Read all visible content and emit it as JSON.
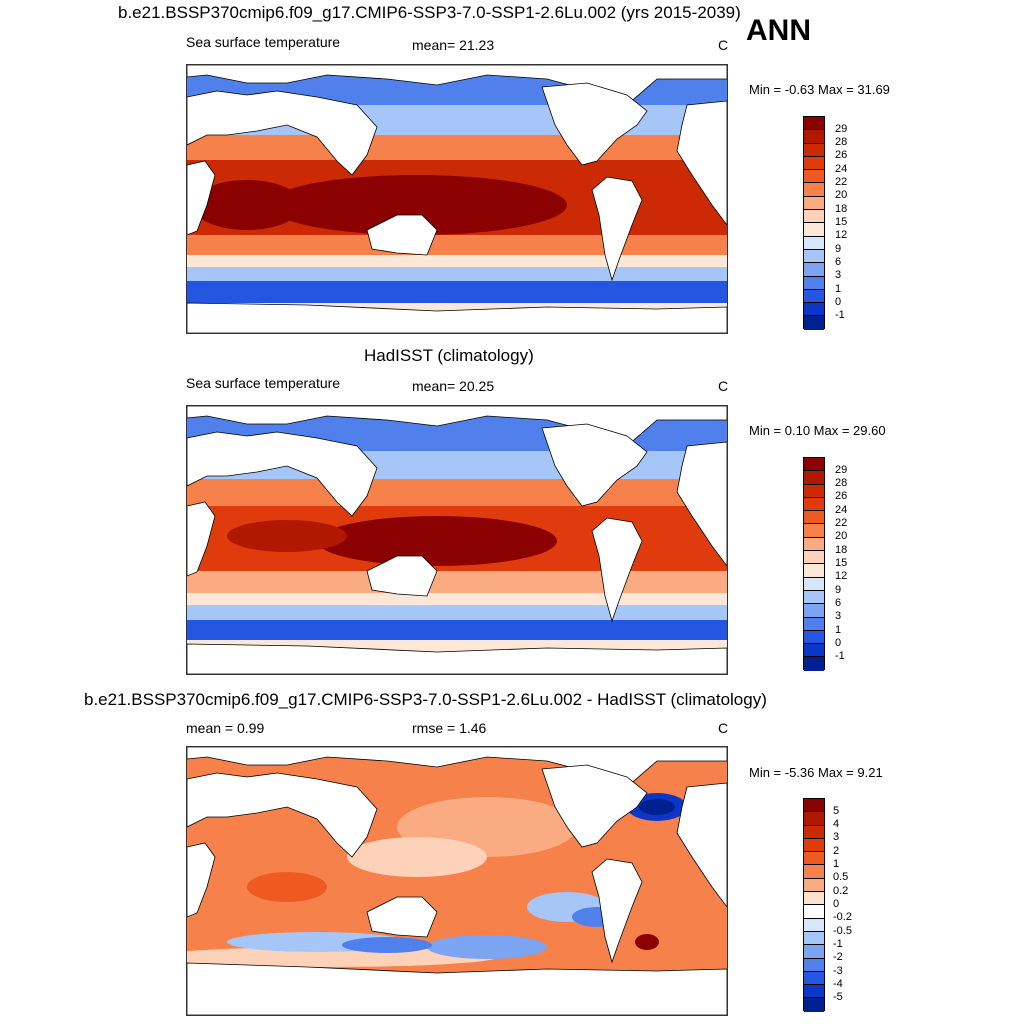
{
  "season": "ANN",
  "panels": [
    {
      "title": "b.e21.BSSP370cmip6.f09_g17.CMIP6-SSP3-7.0-SSP1-2.6Lu.002 (yrs 2015-2039)",
      "left_label": "Sea surface temperature",
      "mid_label": "mean=  21.23",
      "unit": "C",
      "minmax": "Min =  -0.63 Max =  31.69",
      "colorbar_labels": [
        "29",
        "28",
        "26",
        "24",
        "22",
        "20",
        "18",
        "15",
        "12",
        "9",
        "6",
        "3",
        "1",
        "0",
        "-1"
      ],
      "colorbar_colors": [
        "#8b0000",
        "#b01800",
        "#cc2a05",
        "#e03b0d",
        "#ef5a22",
        "#f7814a",
        "#fbab82",
        "#fdd2b8",
        "#fde8d8",
        "#d6e6fb",
        "#a7c6f8",
        "#7ba4f2",
        "#4f80ec",
        "#2456e2",
        "#0b36c8",
        "#002090"
      ]
    },
    {
      "title": "HadISST (climatology)",
      "left_label": "Sea surface temperature",
      "mid_label": "mean=  20.25",
      "unit": "C",
      "minmax": "Min =   0.10 Max =  29.60",
      "colorbar_labels": [
        "29",
        "28",
        "26",
        "24",
        "22",
        "20",
        "18",
        "15",
        "12",
        "9",
        "6",
        "3",
        "1",
        "0",
        "-1"
      ],
      "colorbar_colors": [
        "#8b0000",
        "#b01800",
        "#cc2a05",
        "#e03b0d",
        "#ef5a22",
        "#f7814a",
        "#fbab82",
        "#fdd2b8",
        "#fde8d8",
        "#d6e6fb",
        "#a7c6f8",
        "#7ba4f2",
        "#4f80ec",
        "#2456e2",
        "#0b36c8",
        "#002090"
      ]
    },
    {
      "title": "b.e21.BSSP370cmip6.f09_g17.CMIP6-SSP3-7.0-SSP1-2.6Lu.002 - HadISST (climatology)",
      "left_label": "mean =   0.99",
      "mid_label": "rmse =   1.46",
      "unit": "C",
      "minmax": "Min =  -5.36 Max =   9.21",
      "colorbar_labels": [
        "5",
        "4",
        "3",
        "2",
        "1",
        "0.5",
        "0.2",
        "0",
        "-0.2",
        "-0.5",
        "-1",
        "-2",
        "-3",
        "-4",
        "-5"
      ],
      "colorbar_colors": [
        "#8b0000",
        "#b01800",
        "#cc2a05",
        "#e03b0d",
        "#ef5a22",
        "#f7814a",
        "#fbab82",
        "#fde2d0",
        "#ffffff",
        "#d6e6fb",
        "#a7c6f8",
        "#7ba4f2",
        "#4f80ec",
        "#2456e2",
        "#0b36c8",
        "#002090"
      ]
    }
  ]
}
